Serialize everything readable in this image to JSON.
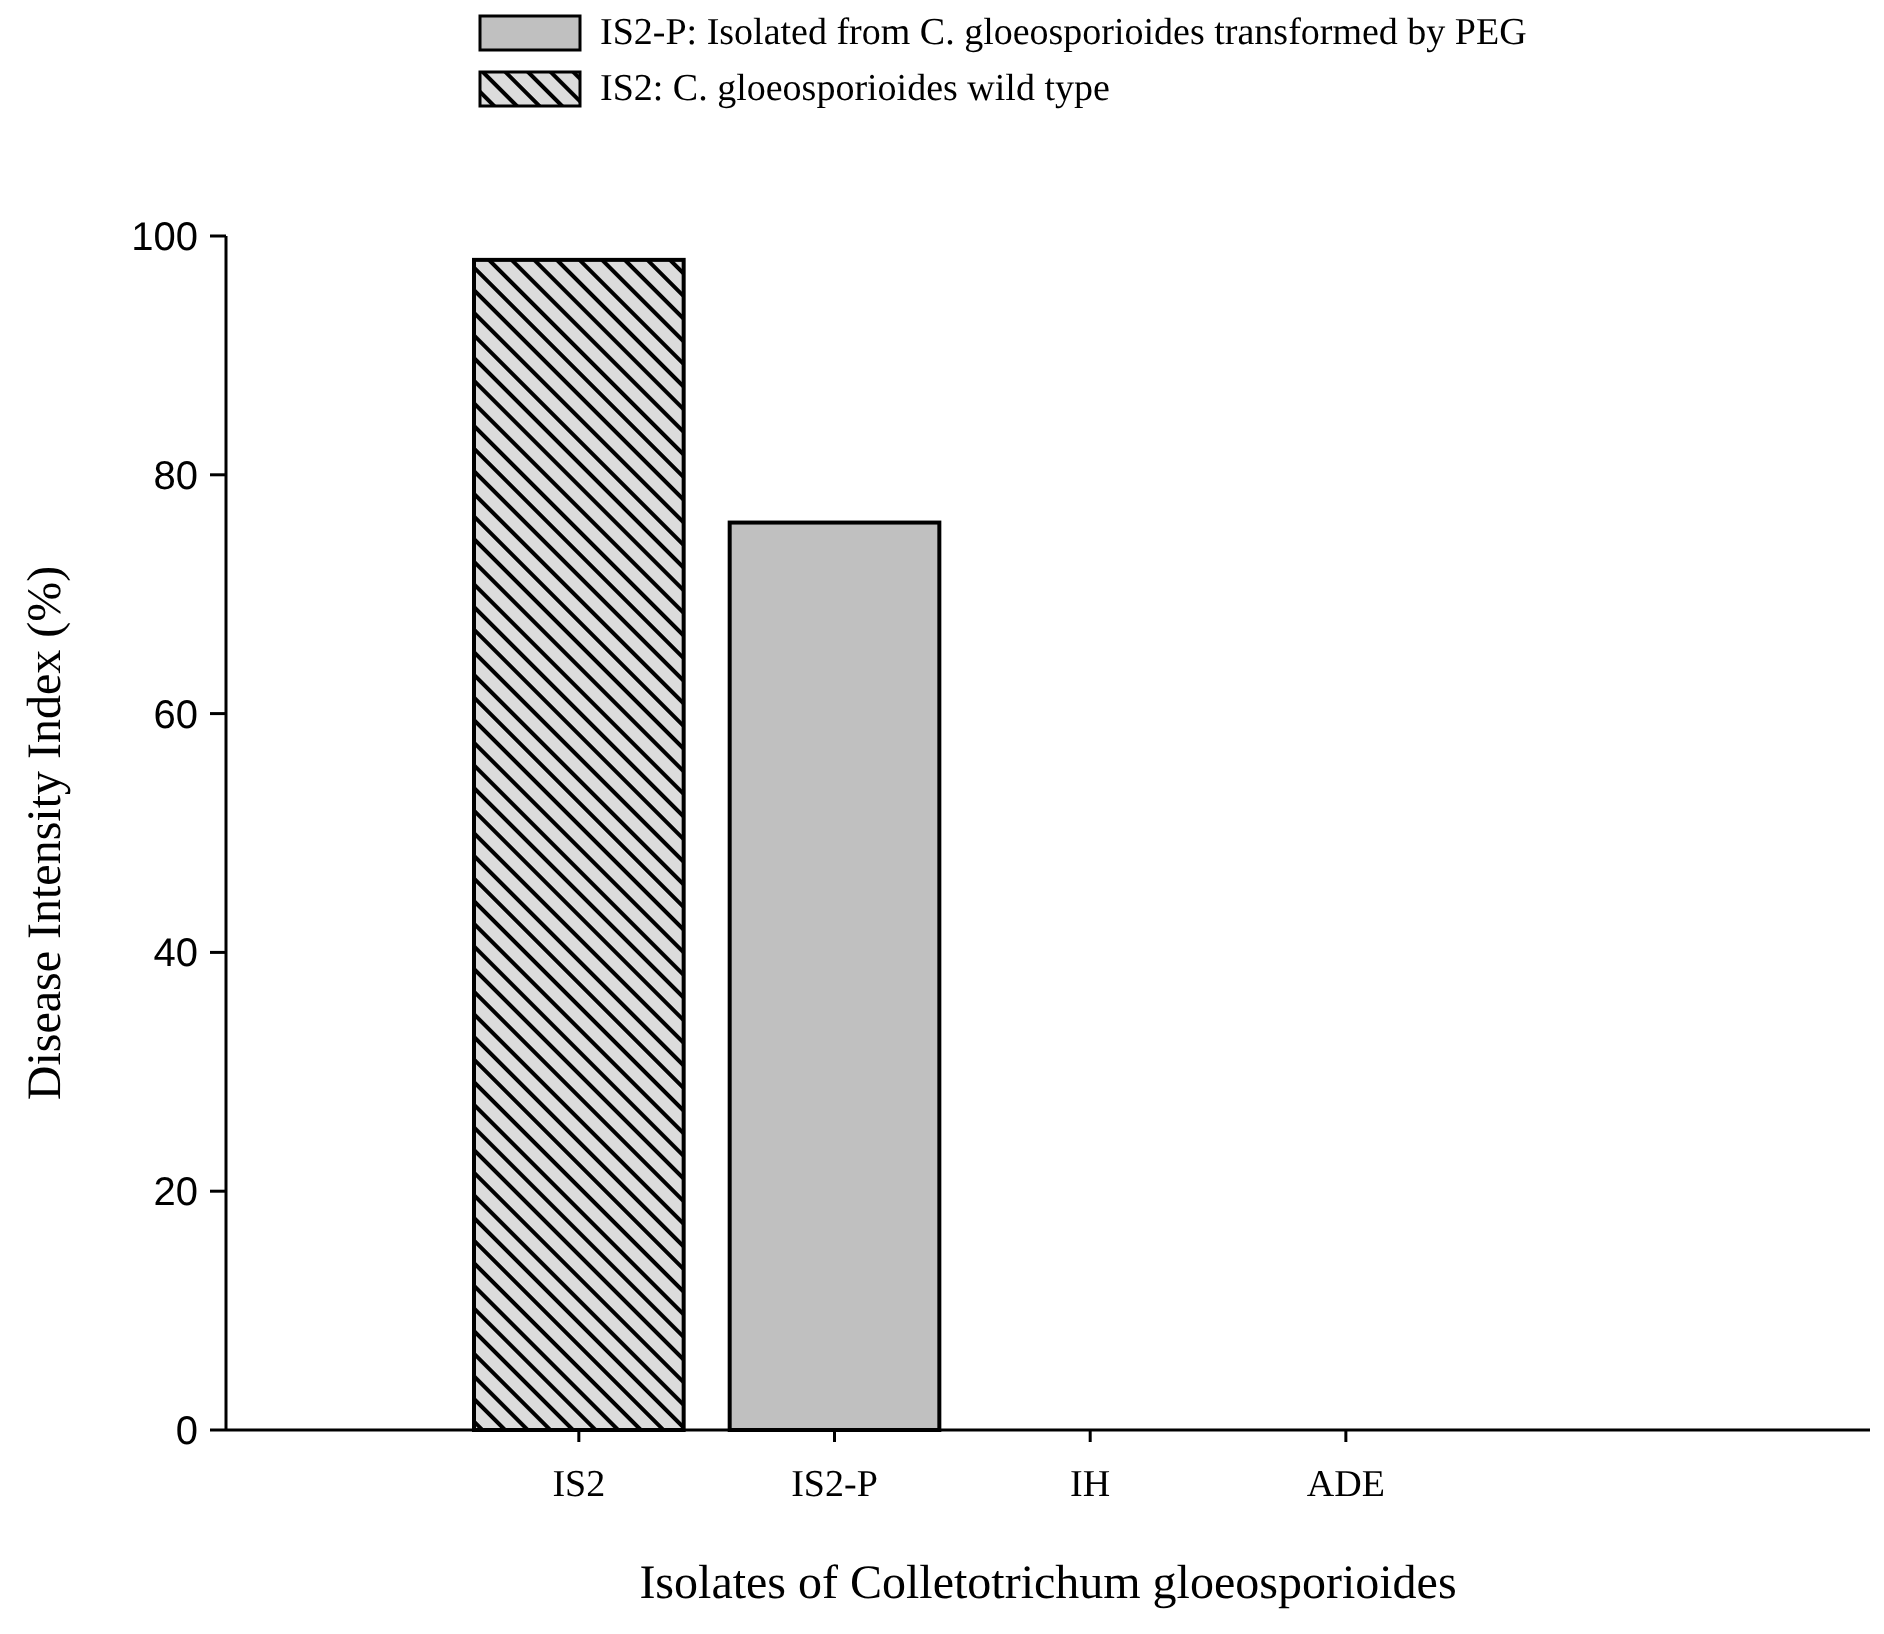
{
  "chart_data": {
    "type": "bar",
    "xlabel": "Isolates of Colletotrichum gloeosporioides",
    "ylabel": "Disease Intensity Index (%)",
    "categories": [
      "IS2",
      "IS2-P",
      "IH",
      "ADE"
    ],
    "series": [
      {
        "name": "IS2-P: Isolated from C. gloeosporioides transformed by PEG",
        "color": "#c0c0c0",
        "values": [
          null,
          76,
          0,
          0
        ]
      },
      {
        "name": "IS2: C. gloeosporioides wild type",
        "color": "#000000",
        "values": [
          98,
          null,
          null,
          null
        ]
      }
    ],
    "ylim": [
      0,
      100
    ],
    "yticks": [
      0,
      20,
      40,
      60,
      80,
      100
    ],
    "grid": false,
    "legend": "top"
  }
}
